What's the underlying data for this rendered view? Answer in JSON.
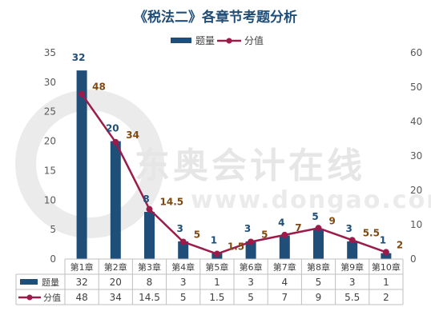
{
  "chart_data": {
    "type": "bar",
    "title": "《税法二》各章节考题分析",
    "categories": [
      "第1章",
      "第2章",
      "第3章",
      "第4章",
      "第5章",
      "第6章",
      "第7章",
      "第8章",
      "第9章",
      "第10章"
    ],
    "series": [
      {
        "name": "题量",
        "type": "bar",
        "axis": "left",
        "values": [
          32,
          20,
          8,
          3,
          1,
          3,
          4,
          5,
          3,
          1
        ]
      },
      {
        "name": "分值",
        "type": "line",
        "axis": "right",
        "values": [
          48,
          34,
          14.5,
          5,
          1.5,
          5,
          7,
          9,
          5.5,
          2
        ]
      }
    ],
    "y_left": {
      "min": 0,
      "max": 35,
      "ticks": [
        "0",
        "5",
        "10",
        "15",
        "20",
        "25",
        "30",
        "35"
      ]
    },
    "y_right": {
      "min": 0,
      "max": 60,
      "ticks": [
        "0",
        "10",
        "20",
        "30",
        "40",
        "50",
        "60"
      ]
    },
    "bar_labels": [
      "32",
      "20",
      "8",
      "3",
      "1",
      "3",
      "4",
      "5",
      "3",
      "1"
    ],
    "line_labels": [
      "48",
      "34",
      "14.5",
      "5",
      "1.5",
      "5",
      "7",
      "9",
      "5.5",
      "2"
    ],
    "legend_position": "top",
    "data_table": true
  },
  "colors": {
    "bar": "#1f4e79",
    "line": "#9b1b4b",
    "bar_label": "#1f4e79",
    "line_label": "#7f4a12",
    "title": "#1f4e79",
    "axis": "#595959",
    "table_border": "#bfbfbf",
    "watermark": "#e6e6e6"
  },
  "watermark": {
    "text": "东奥会计在线",
    "url": "www.dongao.com"
  }
}
